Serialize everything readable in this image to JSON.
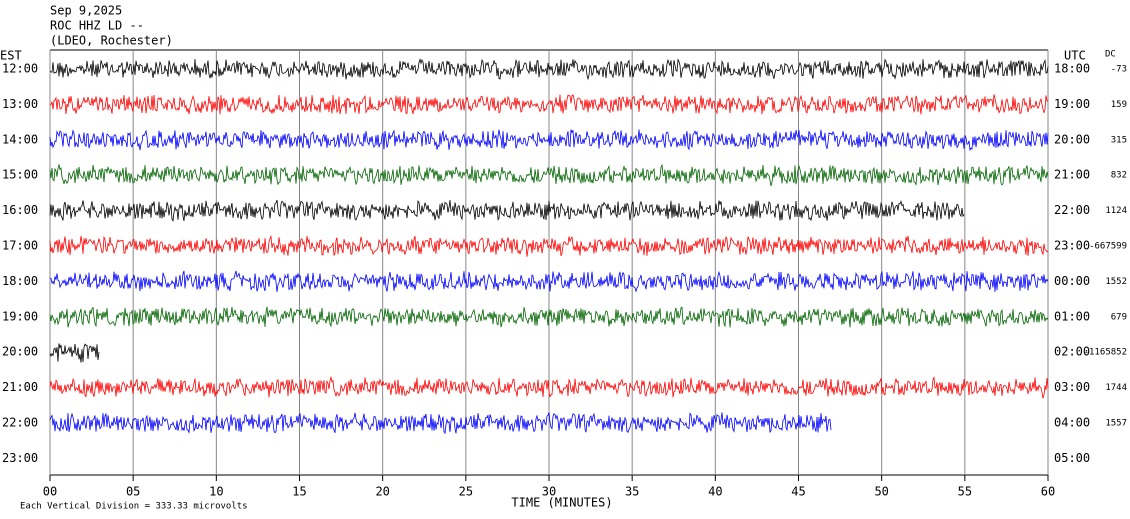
{
  "chart_data": {
    "type": "helicorder",
    "title_lines": [
      "Sep 9,2025",
      "ROC HHZ LD --",
      "(LDEO, Rochester)"
    ],
    "left_axis_label": "EST",
    "right_axis_label": "UTC",
    "dc_label": "DC",
    "x_label": "TIME (MINUTES)",
    "footnote": "Each Vertical Division = 333.33 microvolts",
    "xlim": [
      0,
      60
    ],
    "xticks": [
      {
        "value": 0,
        "label": "00"
      },
      {
        "value": 5,
        "label": "05"
      },
      10,
      15,
      20,
      25,
      30,
      35,
      40,
      45,
      50,
      55,
      60
    ],
    "grid": true,
    "rows": [
      {
        "est": "12:00",
        "utc": "18:00",
        "dc": -73,
        "color": "#000000",
        "start": 0,
        "end": 60
      },
      {
        "est": "13:00",
        "utc": "19:00",
        "dc": 159,
        "color": "#ff0000",
        "start": 0,
        "end": 60
      },
      {
        "est": "14:00",
        "utc": "20:00",
        "dc": 315,
        "color": "#0000ff",
        "start": 0,
        "end": 60
      },
      {
        "est": "15:00",
        "utc": "21:00",
        "dc": 832,
        "color": "#006400",
        "start": 0,
        "end": 60
      },
      {
        "est": "16:00",
        "utc": "22:00",
        "dc": 1124,
        "color": "#000000",
        "start": 0,
        "end": 55
      },
      {
        "est": "17:00",
        "utc": "23:00",
        "dc": -667599,
        "color": "#ff0000",
        "start": 0,
        "end": 60
      },
      {
        "est": "18:00",
        "utc": "00:00",
        "dc": 1552,
        "color": "#0000ff",
        "start": 0,
        "end": 60
      },
      {
        "est": "19:00",
        "utc": "01:00",
        "dc": 679,
        "color": "#006400",
        "start": 0,
        "end": 60
      },
      {
        "est": "20:00",
        "utc": "02:00",
        "dc": -1165852,
        "color": "#000000",
        "start": 0,
        "end": 3
      },
      {
        "est": "21:00",
        "utc": "03:00",
        "dc": 1744,
        "color": "#ff0000",
        "start": 0,
        "end": 60
      },
      {
        "est": "22:00",
        "utc": "04:00",
        "dc": 1557,
        "color": "#0000ff",
        "start": 0,
        "end": 47
      },
      {
        "est": "23:00",
        "utc": "05:00",
        "dc": null,
        "color": null,
        "start": null,
        "end": null
      }
    ]
  }
}
